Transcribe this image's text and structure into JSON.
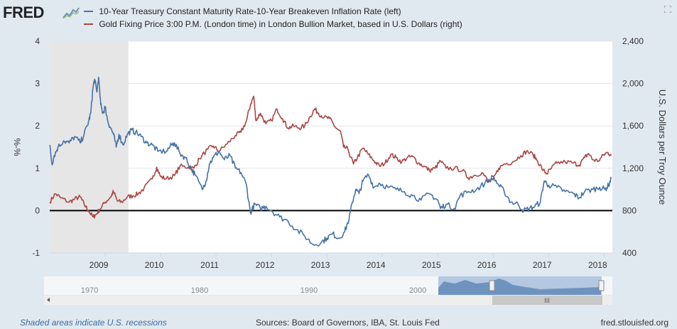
{
  "brand": {
    "logo_text": "FRED"
  },
  "colors": {
    "series_blue": "#4572a7",
    "series_red": "#aa4643",
    "recession": "#e6e6e6",
    "plot_bg": "#ffffff",
    "navigator_fill": "#a8c0de"
  },
  "chart_data": {
    "type": "line",
    "title": "",
    "x_range": [
      2008.0,
      2018.15
    ],
    "x_ticks": [
      2009,
      2010,
      2011,
      2012,
      2013,
      2014,
      2015,
      2016,
      2017,
      2018
    ],
    "left_axis": {
      "label": "%-%",
      "ylim": [
        -1,
        4
      ],
      "ticks": [
        -1,
        0,
        1,
        2,
        3,
        4
      ]
    },
    "right_axis": {
      "label": "U.S. Dollars per Troy Ounce",
      "ylim": [
        400,
        2400
      ],
      "ticks": [
        "400",
        "800",
        "1,200",
        "1,600",
        "2,000",
        "2,400"
      ]
    },
    "recession": {
      "start": 2008.0,
      "end": 2009.42
    },
    "zero_line": 0,
    "series": [
      {
        "name": "10-Year Treasury Constant Maturity Rate-10-Year Breakeven Inflation Rate (left)",
        "axis": "left",
        "color": "#4572a7",
        "points": [
          [
            2008.0,
            1.55
          ],
          [
            2008.04,
            1.1
          ],
          [
            2008.08,
            1.3
          ],
          [
            2008.15,
            1.5
          ],
          [
            2008.25,
            1.65
          ],
          [
            2008.35,
            1.6
          ],
          [
            2008.45,
            1.75
          ],
          [
            2008.55,
            1.6
          ],
          [
            2008.62,
            1.8
          ],
          [
            2008.7,
            2.1
          ],
          [
            2008.74,
            2.3
          ],
          [
            2008.78,
            2.9
          ],
          [
            2008.81,
            3.1
          ],
          [
            2008.85,
            2.8
          ],
          [
            2008.88,
            3.15
          ],
          [
            2008.92,
            2.5
          ],
          [
            2008.96,
            2.3
          ],
          [
            2009.0,
            2.45
          ],
          [
            2009.05,
            2.1
          ],
          [
            2009.1,
            1.95
          ],
          [
            2009.15,
            1.8
          ],
          [
            2009.2,
            1.5
          ],
          [
            2009.25,
            1.8
          ],
          [
            2009.32,
            1.55
          ],
          [
            2009.4,
            1.8
          ],
          [
            2009.48,
            1.9
          ],
          [
            2009.55,
            1.85
          ],
          [
            2009.65,
            1.75
          ],
          [
            2009.75,
            1.6
          ],
          [
            2009.85,
            1.55
          ],
          [
            2009.95,
            1.4
          ],
          [
            2010.1,
            1.4
          ],
          [
            2010.2,
            1.55
          ],
          [
            2010.25,
            1.6
          ],
          [
            2010.35,
            1.35
          ],
          [
            2010.45,
            1.25
          ],
          [
            2010.55,
            1.0
          ],
          [
            2010.62,
            0.85
          ],
          [
            2010.75,
            0.5
          ],
          [
            2010.82,
            0.7
          ],
          [
            2010.88,
            1.1
          ],
          [
            2010.95,
            1.25
          ],
          [
            2011.05,
            1.4
          ],
          [
            2011.15,
            1.2
          ],
          [
            2011.25,
            1.3
          ],
          [
            2011.35,
            1.0
          ],
          [
            2011.45,
            0.9
          ],
          [
            2011.55,
            0.6
          ],
          [
            2011.62,
            -0.05
          ],
          [
            2011.7,
            0.15
          ],
          [
            2011.8,
            0.05
          ],
          [
            2011.9,
            0.1
          ],
          [
            2012.0,
            0.0
          ],
          [
            2012.15,
            -0.15
          ],
          [
            2012.3,
            -0.25
          ],
          [
            2012.45,
            -0.45
          ],
          [
            2012.6,
            -0.6
          ],
          [
            2012.75,
            -0.8
          ],
          [
            2012.9,
            -0.75
          ],
          [
            2013.0,
            -0.65
          ],
          [
            2013.1,
            -0.55
          ],
          [
            2013.22,
            -0.65
          ],
          [
            2013.32,
            -0.5
          ],
          [
            2013.4,
            -0.2
          ],
          [
            2013.46,
            0.2
          ],
          [
            2013.52,
            0.5
          ],
          [
            2013.58,
            0.4
          ],
          [
            2013.65,
            0.7
          ],
          [
            2013.75,
            0.85
          ],
          [
            2013.85,
            0.55
          ],
          [
            2013.95,
            0.65
          ],
          [
            2014.1,
            0.55
          ],
          [
            2014.25,
            0.5
          ],
          [
            2014.4,
            0.45
          ],
          [
            2014.55,
            0.35
          ],
          [
            2014.7,
            0.25
          ],
          [
            2014.85,
            0.4
          ],
          [
            2015.0,
            0.25
          ],
          [
            2015.05,
            0.05
          ],
          [
            2015.15,
            0.15
          ],
          [
            2015.3,
            0.05
          ],
          [
            2015.4,
            0.35
          ],
          [
            2015.55,
            0.45
          ],
          [
            2015.7,
            0.5
          ],
          [
            2015.85,
            0.65
          ],
          [
            2016.0,
            0.8
          ],
          [
            2016.1,
            0.6
          ],
          [
            2016.2,
            0.45
          ],
          [
            2016.32,
            0.2
          ],
          [
            2016.45,
            0.15
          ],
          [
            2016.55,
            0.0
          ],
          [
            2016.65,
            0.05
          ],
          [
            2016.75,
            0.1
          ],
          [
            2016.85,
            0.2
          ],
          [
            2016.92,
            0.7
          ],
          [
            2017.0,
            0.6
          ],
          [
            2017.15,
            0.55
          ],
          [
            2017.3,
            0.45
          ],
          [
            2017.45,
            0.4
          ],
          [
            2017.55,
            0.3
          ],
          [
            2017.65,
            0.45
          ],
          [
            2017.8,
            0.5
          ],
          [
            2017.92,
            0.55
          ],
          [
            2018.02,
            0.5
          ],
          [
            2018.08,
            0.6
          ],
          [
            2018.13,
            0.75
          ]
        ]
      },
      {
        "name": "Gold Fixing Price 3:00 P.M. (London time) in London Bullion Market, based in U.S. Dollars (right)",
        "axis": "right",
        "color": "#aa4643",
        "points": [
          [
            2008.0,
            880
          ],
          [
            2008.1,
            960
          ],
          [
            2008.2,
            920
          ],
          [
            2008.35,
            880
          ],
          [
            2008.45,
            910
          ],
          [
            2008.55,
            930
          ],
          [
            2008.62,
            860
          ],
          [
            2008.7,
            800
          ],
          [
            2008.78,
            740
          ],
          [
            2008.83,
            760
          ],
          [
            2008.9,
            810
          ],
          [
            2009.0,
            880
          ],
          [
            2009.1,
            930
          ],
          [
            2009.15,
            980
          ],
          [
            2009.22,
            890
          ],
          [
            2009.3,
            880
          ],
          [
            2009.4,
            930
          ],
          [
            2009.5,
            940
          ],
          [
            2009.6,
            960
          ],
          [
            2009.7,
            1010
          ],
          [
            2009.85,
            1100
          ],
          [
            2009.93,
            1210
          ],
          [
            2010.0,
            1120
          ],
          [
            2010.1,
            1100
          ],
          [
            2010.25,
            1130
          ],
          [
            2010.35,
            1220
          ],
          [
            2010.5,
            1210
          ],
          [
            2010.6,
            1200
          ],
          [
            2010.7,
            1290
          ],
          [
            2010.85,
            1380
          ],
          [
            2010.95,
            1410
          ],
          [
            2011.05,
            1360
          ],
          [
            2011.2,
            1430
          ],
          [
            2011.35,
            1510
          ],
          [
            2011.45,
            1540
          ],
          [
            2011.55,
            1650
          ],
          [
            2011.62,
            1800
          ],
          [
            2011.68,
            1880
          ],
          [
            2011.72,
            1650
          ],
          [
            2011.8,
            1720
          ],
          [
            2011.9,
            1620
          ],
          [
            2012.0,
            1650
          ],
          [
            2012.1,
            1760
          ],
          [
            2012.2,
            1670
          ],
          [
            2012.3,
            1580
          ],
          [
            2012.4,
            1600
          ],
          [
            2012.5,
            1580
          ],
          [
            2012.6,
            1600
          ],
          [
            2012.7,
            1690
          ],
          [
            2012.78,
            1760
          ],
          [
            2012.85,
            1720
          ],
          [
            2012.95,
            1680
          ],
          [
            2013.05,
            1670
          ],
          [
            2013.15,
            1590
          ],
          [
            2013.25,
            1540
          ],
          [
            2013.3,
            1400
          ],
          [
            2013.38,
            1380
          ],
          [
            2013.48,
            1240
          ],
          [
            2013.55,
            1300
          ],
          [
            2013.65,
            1390
          ],
          [
            2013.75,
            1330
          ],
          [
            2013.85,
            1270
          ],
          [
            2013.95,
            1220
          ],
          [
            2014.05,
            1250
          ],
          [
            2014.15,
            1330
          ],
          [
            2014.25,
            1300
          ],
          [
            2014.35,
            1260
          ],
          [
            2014.45,
            1300
          ],
          [
            2014.55,
            1310
          ],
          [
            2014.65,
            1250
          ],
          [
            2014.75,
            1220
          ],
          [
            2014.85,
            1180
          ],
          [
            2014.95,
            1200
          ],
          [
            2015.05,
            1270
          ],
          [
            2015.15,
            1200
          ],
          [
            2015.3,
            1200
          ],
          [
            2015.45,
            1180
          ],
          [
            2015.55,
            1110
          ],
          [
            2015.65,
            1130
          ],
          [
            2015.8,
            1160
          ],
          [
            2015.92,
            1070
          ],
          [
            2016.0,
            1090
          ],
          [
            2016.1,
            1200
          ],
          [
            2016.2,
            1240
          ],
          [
            2016.35,
            1260
          ],
          [
            2016.5,
            1320
          ],
          [
            2016.6,
            1360
          ],
          [
            2016.72,
            1330
          ],
          [
            2016.8,
            1270
          ],
          [
            2016.9,
            1180
          ],
          [
            2016.97,
            1150
          ],
          [
            2017.05,
            1200
          ],
          [
            2017.15,
            1250
          ],
          [
            2017.3,
            1260
          ],
          [
            2017.45,
            1250
          ],
          [
            2017.55,
            1230
          ],
          [
            2017.65,
            1300
          ],
          [
            2017.72,
            1340
          ],
          [
            2017.8,
            1280
          ],
          [
            2017.9,
            1270
          ],
          [
            2018.0,
            1330
          ],
          [
            2018.07,
            1350
          ],
          [
            2018.13,
            1320
          ]
        ]
      }
    ],
    "navigator": {
      "labels": [
        "1970",
        "1980",
        "1990",
        "2000"
      ],
      "scrollbar_grip": "III"
    }
  },
  "footer": {
    "recession_note": "Shaded areas indicate U.S. recessions",
    "sources": "Sources: Board of Governors, IBA, St. Louis Fed",
    "site": "fred.stlouisfed.org"
  }
}
